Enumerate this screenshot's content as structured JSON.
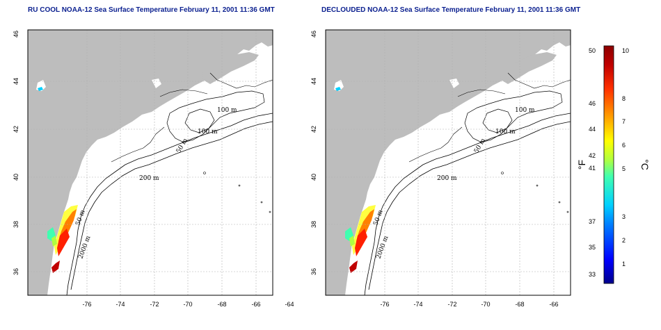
{
  "panels": [
    {
      "title": "RU COOL NOAA-12 Sea Surface Temperature February 11, 2001 11:36 GMT",
      "contour_labels": [
        "100 m",
        "100 m",
        "50 m",
        "200 m",
        "50 m",
        "2000 m"
      ]
    },
    {
      "title": "DECLOUDED NOAA-12 Sea Surface Temperature February 11, 2001 11:36 GMT",
      "contour_labels": [
        "100 m",
        "100 m",
        "50 m",
        "200 m",
        "50 m",
        "2000 m"
      ]
    }
  ],
  "axes": {
    "x_ticks": [
      "-76",
      "-74",
      "-72",
      "-70",
      "-68",
      "-66",
      "-64"
    ],
    "y_ticks": [
      "36",
      "38",
      "40",
      "42",
      "44",
      "46"
    ]
  },
  "colorbar": {
    "fahrenheit_ticks": [
      "50",
      "46",
      "44",
      "42",
      "41",
      "37",
      "35",
      "33"
    ],
    "celsius_ticks": [
      "10",
      "8",
      "7",
      "6",
      "5",
      "3",
      "2",
      "1"
    ],
    "fahrenheit_label": "°F",
    "celsius_label": "°C",
    "colors": [
      "#00008b",
      "#0000ff",
      "#0080ff",
      "#00d0ff",
      "#40ffb0",
      "#b0ff40",
      "#ffff00",
      "#ffa000",
      "#ff3000",
      "#c00000",
      "#8b0000"
    ]
  }
}
